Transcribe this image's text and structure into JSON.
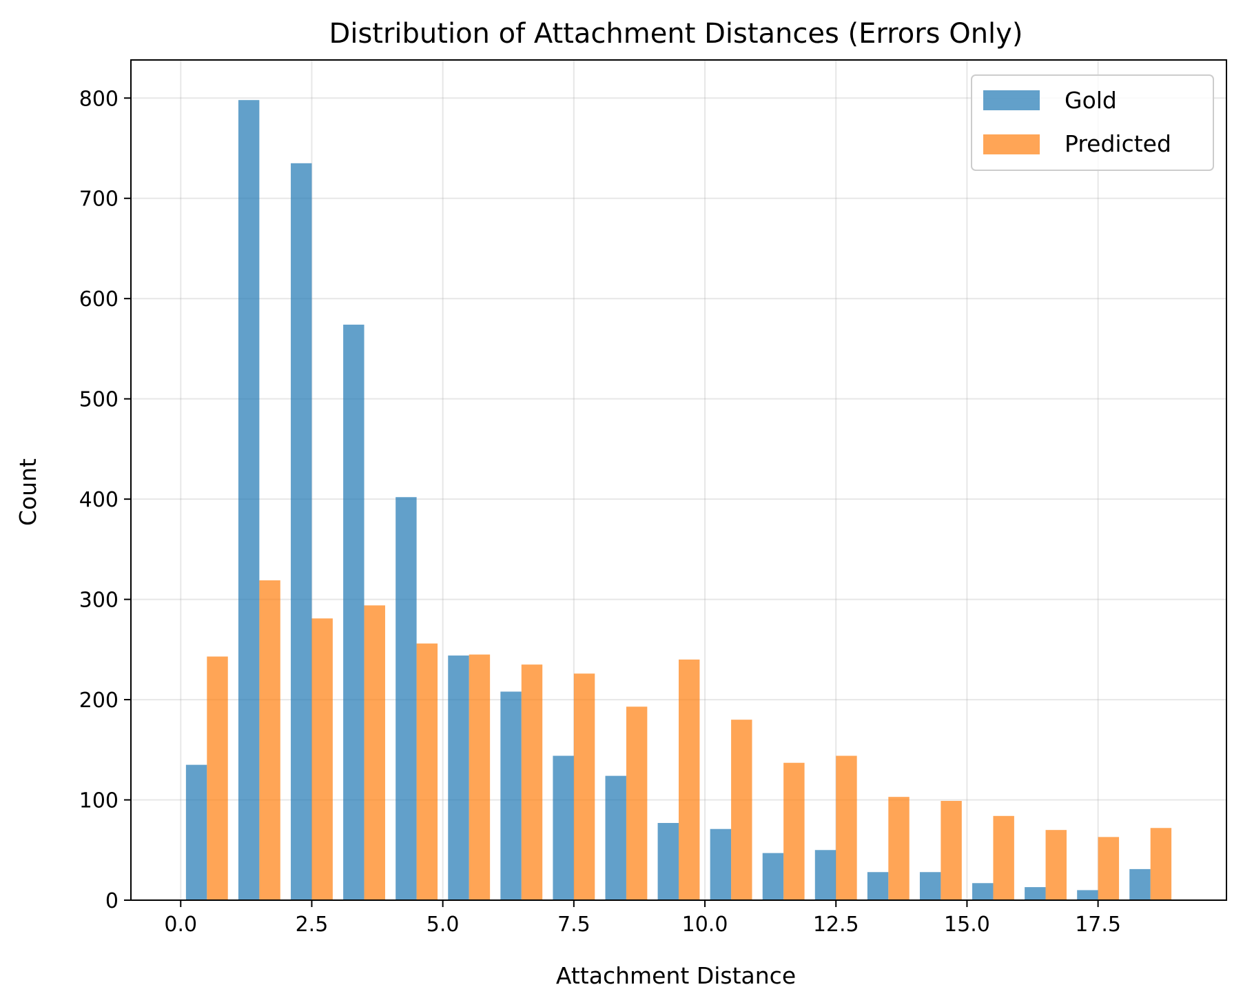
{
  "chart_data": {
    "type": "bar",
    "title": "Distribution of Attachment Distances (Errors Only)",
    "xlabel": "Attachment Distance",
    "ylabel": "Count",
    "xlim": [
      -0.95,
      19.95
    ],
    "ylim": [
      0,
      838
    ],
    "grid": true,
    "legend_position": "top-right",
    "bin_edges": [
      0,
      1,
      2,
      3,
      4,
      5,
      6,
      7,
      8,
      9,
      10,
      11,
      12,
      13,
      14,
      15,
      16,
      17,
      18,
      19
    ],
    "x_ticks": [
      0.0,
      2.5,
      5.0,
      7.5,
      10.0,
      12.5,
      15.0,
      17.5
    ],
    "x_tick_labels": [
      "0.0",
      "2.5",
      "5.0",
      "7.5",
      "10.0",
      "12.5",
      "15.0",
      "17.5"
    ],
    "y_ticks": [
      0,
      100,
      200,
      300,
      400,
      500,
      600,
      700,
      800
    ],
    "y_tick_labels": [
      "0",
      "100",
      "200",
      "300",
      "400",
      "500",
      "600",
      "700",
      "800"
    ],
    "series": [
      {
        "name": "Gold",
        "color": "#1f77b4",
        "opacity": 0.7,
        "values": [
          135,
          798,
          735,
          574,
          402,
          244,
          208,
          144,
          124,
          77,
          71,
          47,
          50,
          28,
          28,
          17,
          13,
          10,
          31
        ]
      },
      {
        "name": "Predicted",
        "color": "#ff7f0e",
        "opacity": 0.7,
        "values": [
          243,
          319,
          281,
          294,
          256,
          245,
          235,
          226,
          193,
          240,
          180,
          137,
          144,
          103,
          99,
          84,
          70,
          63,
          72
        ]
      }
    ]
  }
}
